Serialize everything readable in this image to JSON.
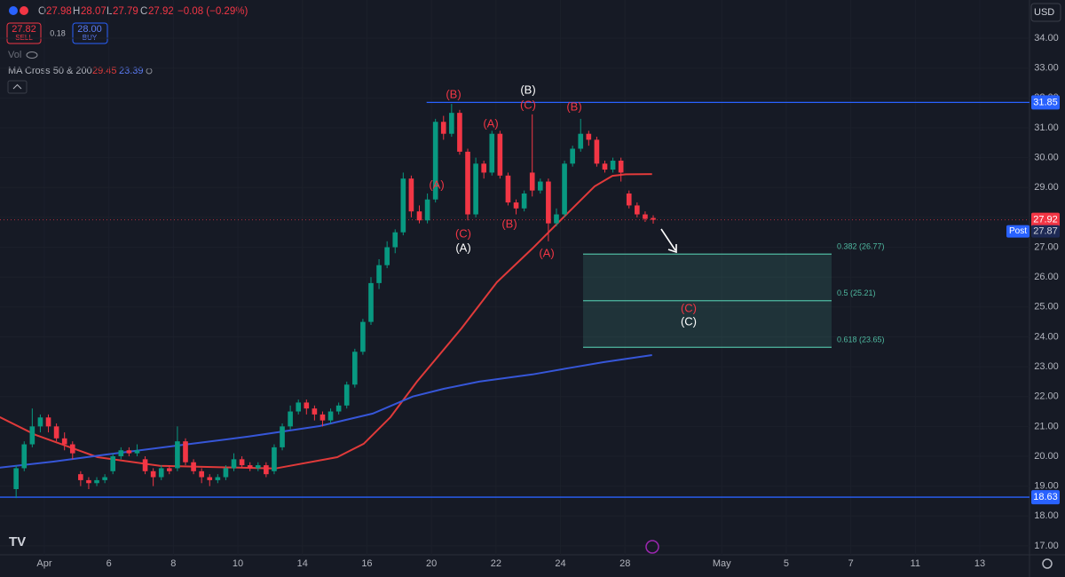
{
  "header": {
    "ohlc_labels": [
      "O",
      "H",
      "L",
      "C"
    ],
    "change": "−0.08 (−0.29%)",
    "sell": {
      "price": "27.82",
      "label": "SELL"
    },
    "spread": 0.18,
    "buy": {
      "price": "28.00",
      "label": "BUY"
    },
    "volume_label": "Vol",
    "indicator": "MA Cross 50 & 200",
    "currency": "USD"
  },
  "chart_data": {
    "type": "candlestick",
    "up_color": "#089981",
    "down_color": "#f23645",
    "x": [
      -0.875,
      -0.625,
      -0.375,
      -0.125,
      0.125,
      0.375,
      0.625,
      0.875,
      1.125,
      1.375,
      1.625,
      1.875,
      2.125,
      2.375,
      2.625,
      2.875,
      3.125,
      3.375,
      3.625,
      3.875,
      4.125,
      4.375,
      4.625,
      4.875,
      5.125,
      5.375,
      5.625,
      5.875,
      6.125,
      6.375,
      6.625,
      6.875,
      7.125,
      7.375,
      7.625,
      7.875,
      8.125,
      8.375,
      8.625,
      8.875,
      9.125,
      9.375,
      9.625,
      9.875,
      10.125,
      10.375,
      10.625,
      10.875,
      11.125,
      11.375,
      11.625,
      11.875,
      12.125,
      12.375,
      12.625,
      12.875,
      13.125,
      13.375,
      13.625,
      13.875,
      14.125,
      14.375,
      14.625,
      14.875,
      15.125,
      15.375,
      15.625,
      15.875,
      16.125,
      16.375,
      16.625,
      16.875,
      17.125,
      17.375,
      17.625,
      17.875,
      18.125,
      18.375,
      18.625,
      18.875
    ],
    "candles": [
      [
        18.9,
        19.7,
        18.6,
        19.6
      ],
      [
        19.6,
        20.5,
        19.5,
        20.4
      ],
      [
        20.4,
        21.6,
        20.3,
        21.0
      ],
      [
        21.0,
        21.4,
        20.8,
        21.3
      ],
      [
        21.3,
        21.4,
        20.8,
        21.0
      ],
      [
        21.0,
        21.1,
        20.5,
        20.6
      ],
      [
        20.6,
        20.8,
        20.2,
        20.4
      ],
      [
        20.4,
        20.5,
        19.9,
        20.1
      ],
      [
        19.4,
        19.5,
        19.0,
        19.2
      ],
      [
        19.2,
        19.3,
        18.9,
        19.1
      ],
      [
        19.1,
        19.3,
        19.0,
        19.2
      ],
      [
        19.2,
        19.4,
        19.1,
        19.3
      ],
      [
        19.5,
        20.1,
        19.4,
        20.0
      ],
      [
        20.0,
        20.3,
        19.9,
        20.2
      ],
      [
        20.2,
        20.3,
        20.0,
        20.1
      ],
      [
        20.1,
        20.4,
        20.0,
        20.2
      ],
      [
        19.9,
        20.0,
        19.4,
        19.5
      ],
      [
        19.5,
        19.6,
        19.0,
        19.3
      ],
      [
        19.3,
        19.7,
        19.2,
        19.6
      ],
      [
        19.6,
        19.7,
        19.4,
        19.5
      ],
      [
        19.6,
        21.0,
        19.5,
        20.5
      ],
      [
        20.5,
        20.6,
        19.7,
        19.8
      ],
      [
        19.8,
        19.9,
        19.4,
        19.5
      ],
      [
        19.5,
        19.6,
        19.1,
        19.3
      ],
      [
        19.3,
        19.4,
        19.0,
        19.2
      ],
      [
        19.2,
        19.4,
        19.1,
        19.3
      ],
      [
        19.3,
        19.7,
        19.2,
        19.6
      ],
      [
        19.6,
        20.1,
        19.5,
        19.9
      ],
      [
        19.9,
        20.0,
        19.6,
        19.7
      ],
      [
        19.7,
        19.8,
        19.5,
        19.6
      ],
      [
        19.6,
        19.8,
        19.5,
        19.7
      ],
      [
        19.7,
        19.8,
        19.3,
        19.4
      ],
      [
        19.5,
        20.4,
        19.4,
        20.3
      ],
      [
        20.3,
        21.1,
        20.2,
        21.0
      ],
      [
        21.0,
        21.7,
        20.9,
        21.5
      ],
      [
        21.5,
        21.9,
        21.4,
        21.8
      ],
      [
        21.8,
        21.9,
        21.4,
        21.6
      ],
      [
        21.6,
        21.7,
        21.2,
        21.4
      ],
      [
        21.4,
        21.5,
        21.0,
        21.2
      ],
      [
        21.2,
        21.6,
        21.1,
        21.5
      ],
      [
        21.5,
        21.8,
        21.4,
        21.7
      ],
      [
        21.7,
        22.5,
        21.6,
        22.4
      ],
      [
        22.4,
        23.6,
        22.3,
        23.5
      ],
      [
        23.5,
        24.6,
        23.4,
        24.5
      ],
      [
        24.5,
        26.0,
        24.4,
        25.8
      ],
      [
        25.8,
        26.6,
        25.6,
        26.4
      ],
      [
        26.4,
        27.2,
        26.3,
        27.0
      ],
      [
        27.0,
        27.6,
        26.8,
        27.5
      ],
      [
        27.5,
        29.5,
        27.4,
        29.3
      ],
      [
        29.3,
        29.4,
        28.0,
        28.2
      ],
      [
        28.2,
        28.4,
        27.8,
        27.9
      ],
      [
        27.9,
        28.8,
        27.8,
        28.6
      ],
      [
        28.6,
        31.3,
        28.5,
        31.2
      ],
      [
        31.2,
        31.4,
        30.6,
        30.8
      ],
      [
        30.8,
        31.8,
        30.7,
        31.5
      ],
      [
        31.5,
        31.6,
        30.1,
        30.2
      ],
      [
        30.2,
        30.3,
        27.9,
        28.1
      ],
      [
        28.1,
        30.0,
        28.0,
        29.8
      ],
      [
        29.8,
        29.9,
        29.3,
        29.5
      ],
      [
        29.5,
        30.9,
        29.4,
        30.8
      ],
      [
        30.8,
        30.9,
        29.3,
        29.4
      ],
      [
        29.4,
        29.5,
        28.4,
        28.5
      ],
      [
        28.5,
        28.6,
        28.1,
        28.3
      ],
      [
        28.3,
        28.9,
        28.2,
        28.8
      ],
      [
        29.5,
        31.45,
        28.7,
        28.9
      ],
      [
        28.9,
        29.3,
        28.8,
        29.2
      ],
      [
        29.2,
        29.3,
        27.2,
        27.8
      ],
      [
        27.8,
        28.3,
        27.7,
        28.1
      ],
      [
        28.1,
        29.9,
        28.0,
        29.8
      ],
      [
        29.8,
        30.4,
        29.7,
        30.3
      ],
      [
        30.3,
        31.3,
        30.2,
        30.8
      ],
      [
        30.8,
        30.9,
        30.4,
        30.6
      ],
      [
        30.6,
        30.7,
        29.7,
        29.8
      ],
      [
        29.8,
        29.9,
        29.5,
        29.6
      ],
      [
        29.6,
        30.0,
        29.5,
        29.9
      ],
      [
        29.9,
        30.0,
        29.2,
        29.5
      ],
      [
        28.8,
        28.9,
        28.3,
        28.4
      ],
      [
        28.4,
        28.5,
        28.0,
        28.1
      ],
      [
        28.1,
        28.2,
        27.85,
        27.95
      ],
      [
        27.98,
        28.07,
        27.79,
        27.92
      ]
    ],
    "ma": [
      {
        "color": "#e03a3a",
        "x": [
          -1.38,
          -0.28,
          1.65,
          3.58,
          6.05,
          7.15,
          9.08,
          9.9,
          10.73,
          11.55,
          12.93,
          14.03,
          15.13,
          16.23,
          17.06,
          17.61,
          18.02,
          18.84
        ],
        "values": [
          21.31,
          20.72,
          19.97,
          19.68,
          19.62,
          19.59,
          19.97,
          20.42,
          21.31,
          22.5,
          24.28,
          25.83,
          26.96,
          28.15,
          29.04,
          29.39,
          29.44,
          29.45
        ]
      },
      {
        "color": "#3656d8",
        "x": [
          -1.38,
          0.28,
          1.93,
          4.13,
          6.33,
          8.53,
          10.18,
          11.42,
          12.38,
          13.48,
          15.13,
          16.23,
          17.33,
          18.84
        ],
        "values": [
          19.62,
          19.82,
          20.06,
          20.36,
          20.66,
          21.01,
          21.43,
          22.0,
          22.26,
          22.5,
          22.74,
          22.95,
          23.15,
          23.39
        ]
      }
    ],
    "hlines": {
      "values": [
        31.85,
        18.63
      ],
      "color": "#2962ff"
    },
    "post": {
      "label": "Post",
      "value": 27.87
    },
    "fib": {
      "color": "#4fb9a0",
      "levels": [
        {
          "value": 26.77,
          "label": "0.382 (26.77)"
        },
        {
          "value": 25.21,
          "label": "0.5 (25.21)"
        },
        {
          "value": 23.65,
          "label": "0.618 (23.65)"
        }
      ]
    },
    "waves": [
      {
        "text": "(B)",
        "color": "#f23645"
      },
      {
        "text": "(B)",
        "color": "#ffffff"
      },
      {
        "text": "(C)",
        "color": "#f23645"
      },
      {
        "text": "(B)",
        "color": "#f23645"
      },
      {
        "text": "(A)",
        "color": "#f23645"
      },
      {
        "text": "(A)",
        "color": "#f23645"
      },
      {
        "text": "(C)",
        "color": "#f23645"
      },
      {
        "text": "(A)",
        "color": "#ffffff"
      },
      {
        "text": "(B)",
        "color": "#f23645"
      },
      {
        "text": "(A)",
        "color": "#f23645"
      },
      {
        "text": "(C)",
        "color": "#f23645"
      },
      {
        "text": "(C)",
        "color": "#ffffff"
      }
    ],
    "xlim": [
      -1.375,
      30.54
    ],
    "ylim": [
      16.7,
      35.28
    ],
    "xticks": [
      {
        "value": 0,
        "label": "Apr"
      },
      {
        "value": 2,
        "label": "6"
      },
      {
        "value": 4,
        "label": "8"
      },
      {
        "value": 6,
        "label": "10"
      },
      {
        "value": 8,
        "label": "14"
      },
      {
        "value": 10,
        "label": "16"
      },
      {
        "value": 12,
        "label": "20"
      },
      {
        "value": 14,
        "label": "22"
      },
      {
        "value": 16,
        "label": "24"
      },
      {
        "value": 18,
        "label": "28"
      },
      {
        "value": 21,
        "label": "May"
      },
      {
        "value": 23,
        "label": "5"
      },
      {
        "value": 25,
        "label": "7"
      },
      {
        "value": 27,
        "label": "11"
      },
      {
        "value": 29,
        "label": "13"
      }
    ],
    "yticks": [
      {
        "value": 17,
        "label": "17.00"
      },
      {
        "value": 18,
        "label": "18.00"
      },
      {
        "value": 19,
        "label": "19.00"
      },
      {
        "value": 20,
        "label": "20.00"
      },
      {
        "value": 21,
        "label": "21.00"
      },
      {
        "value": 22,
        "label": "22.00"
      },
      {
        "value": 23,
        "label": "23.00"
      },
      {
        "value": 24,
        "label": "24.00"
      },
      {
        "value": 25,
        "label": "25.00"
      },
      {
        "value": 26,
        "label": "26.00"
      },
      {
        "value": 27,
        "label": "27.00"
      },
      {
        "value": 28,
        "label": "28.00"
      },
      {
        "value": 29,
        "label": "29.00"
      },
      {
        "value": 30,
        "label": "30.00"
      },
      {
        "value": 31,
        "label": "31.00"
      },
      {
        "value": 32,
        "label": "32.00"
      },
      {
        "value": 33,
        "label": "33.00"
      },
      {
        "value": 34,
        "label": "34.00"
      }
    ],
    "grid": true
  }
}
